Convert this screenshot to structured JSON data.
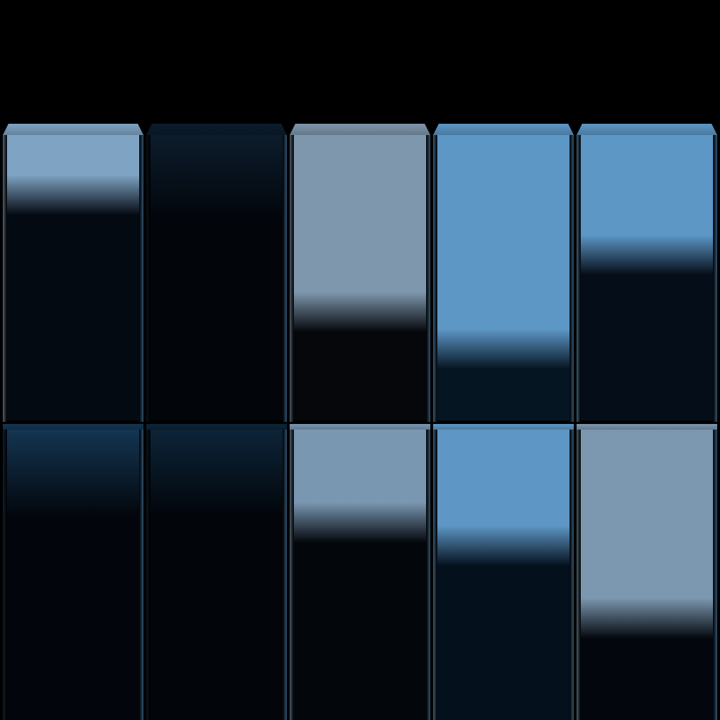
{
  "colors": {
    "background": "#000000",
    "light_steel": "#7e9ab5",
    "steel_blue": "#5e97c6",
    "mid_blue": "#4a7ea8",
    "dark_navy": "#03070c",
    "deep_navy": "#0a1f33"
  },
  "rows": [
    {
      "panels": [
        {
          "top_color": "#7fa3c3",
          "bottom_color": "#040a12",
          "light_level": 0.14
        },
        {
          "top_color": "#0c1c2c",
          "bottom_color": "#02050a",
          "light_level": 0.0
        },
        {
          "top_color": "#7e97ad",
          "bottom_color": "#05070b",
          "light_level": 0.55
        },
        {
          "top_color": "#5d97c6",
          "bottom_color": "#061522",
          "light_level": 0.68
        },
        {
          "top_color": "#5d97c6",
          "bottom_color": "#050d18",
          "light_level": 0.35
        }
      ]
    },
    {
      "panels": [
        {
          "top_color": "#143552",
          "bottom_color": "#02060c",
          "light_level": 0.0
        },
        {
          "top_color": "#0d2438",
          "bottom_color": "#02050a",
          "light_level": 0.0
        },
        {
          "top_color": "#7a97b2",
          "bottom_color": "#03060b",
          "light_level": 0.25
        },
        {
          "top_color": "#5e97c6",
          "bottom_color": "#04101c",
          "light_level": 0.33
        },
        {
          "top_color": "#7c97b0",
          "bottom_color": "#03070d",
          "light_level": 0.58
        }
      ]
    }
  ]
}
